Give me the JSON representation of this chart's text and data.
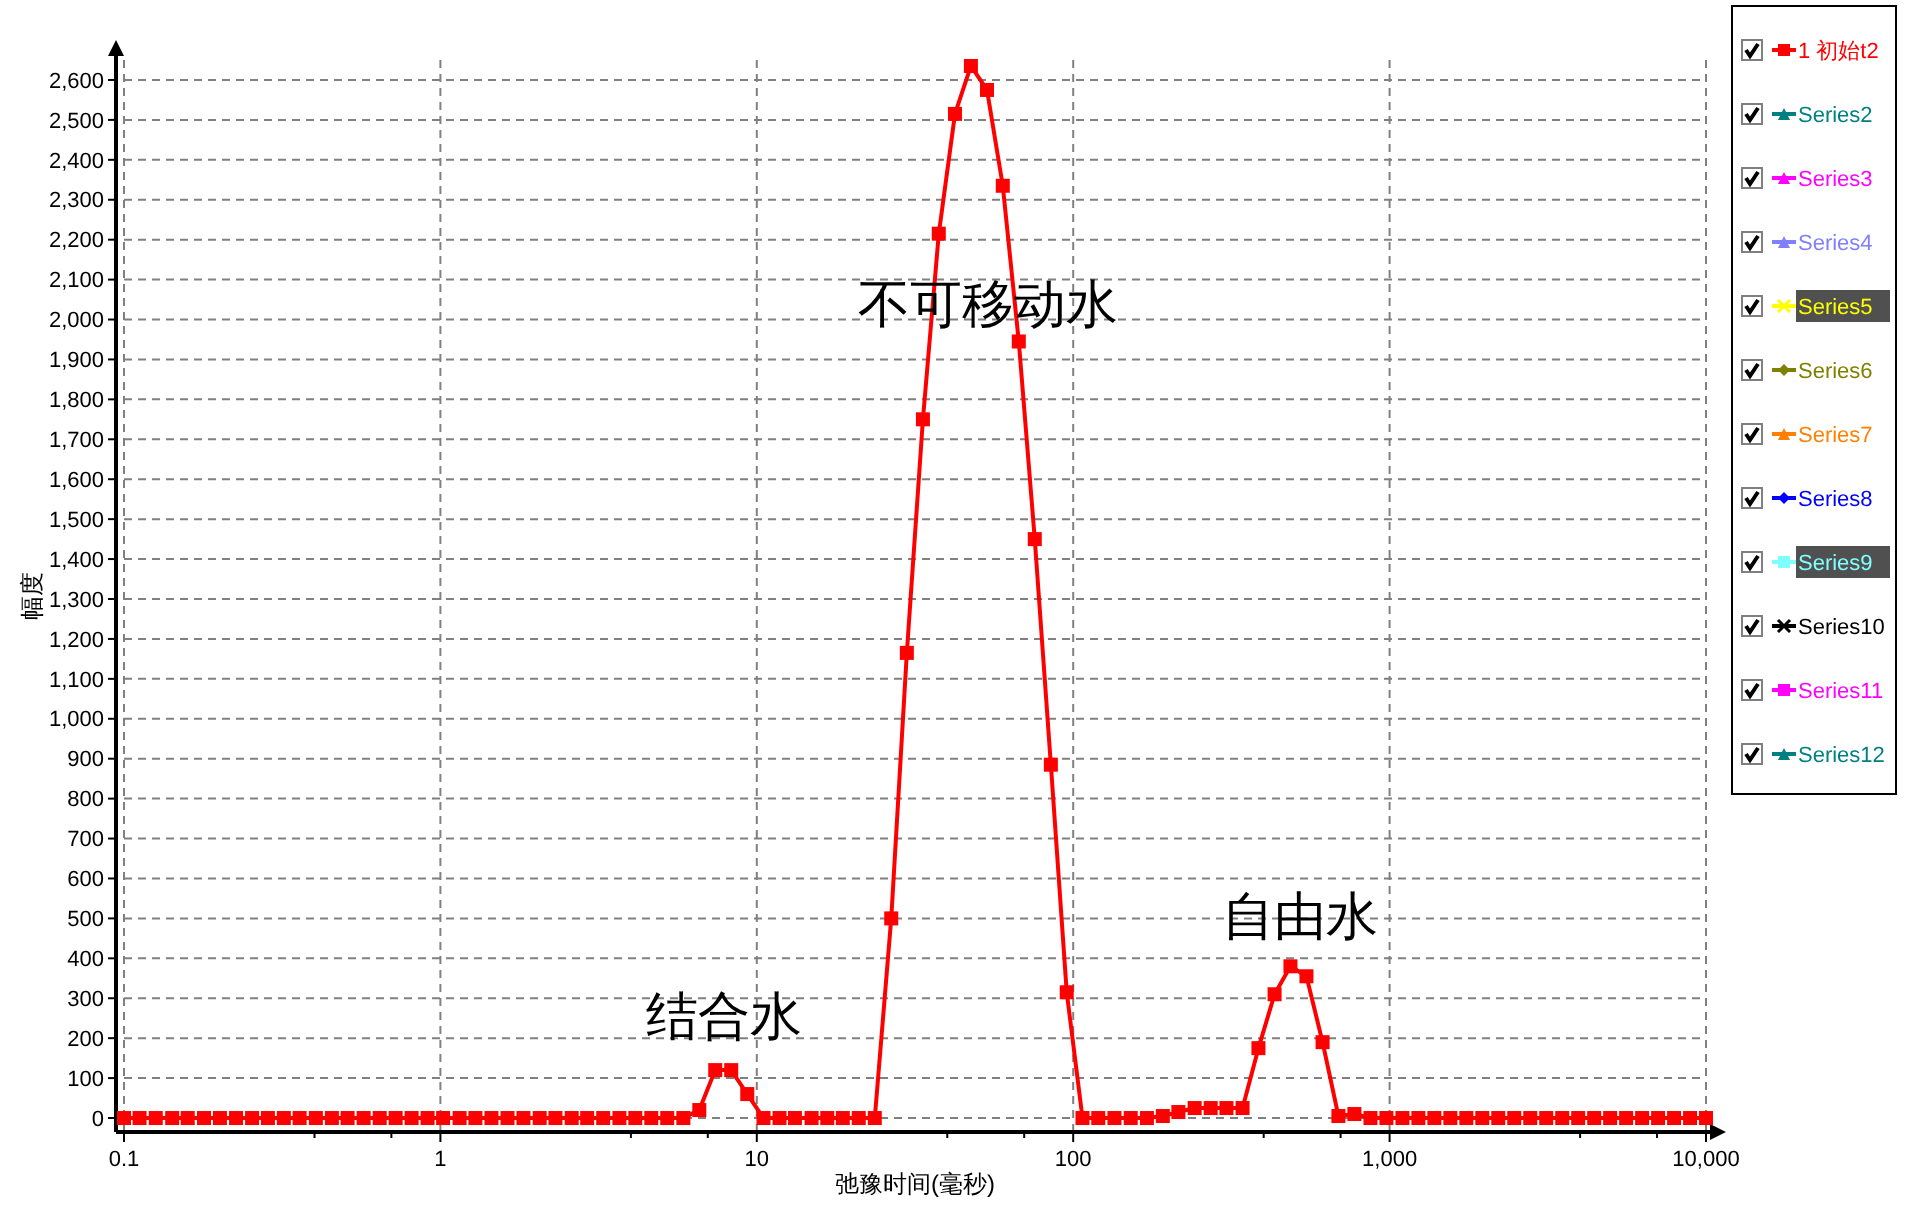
{
  "chart_data": {
    "type": "line",
    "xlabel": "弛豫时间(毫秒)",
    "ylabel": "幅度",
    "log": "x",
    "x": [
      0.1,
      0.112,
      0.126,
      0.142,
      0.159,
      0.179,
      0.201,
      0.226,
      0.254,
      0.285,
      0.32,
      0.359,
      0.404,
      0.454,
      0.509,
      0.572,
      0.643,
      0.722,
      0.811,
      0.911,
      1.02,
      1.15,
      1.29,
      1.45,
      1.63,
      1.83,
      2.06,
      2.31,
      2.6,
      2.91,
      3.27,
      3.68,
      4.13,
      4.64,
      5.21,
      5.86,
      6.58,
      7.39,
      8.3,
      9.33,
      10.5,
      11.8,
      13.2,
      14.9,
      16.7,
      18.7,
      21,
      23.6,
      26.6,
      29.8,
      33.5,
      37.6,
      42.3,
      47.5,
      53.4,
      59.9,
      67.3,
      75.6,
      85,
      95.4,
      107,
      120,
      135,
      152,
      171,
      192,
      215,
      242,
      272,
      305,
      343,
      385,
      433,
      486,
      546,
      614,
      689,
      774,
      870,
      977,
      1098,
      1233,
      1385,
      1556,
      1748,
      1963,
      2205,
      2477,
      2783,
      3126,
      3512,
      3945,
      4432,
      4978,
      5592,
      6282,
      7057,
      7927,
      8905,
      10000
    ],
    "series": [
      {
        "name": "1 初始t2",
        "color": "#ff0000",
        "marker": "square",
        "values": [
          0,
          0,
          0,
          0,
          0,
          0,
          0,
          0,
          0,
          0,
          0,
          0,
          0,
          0,
          0,
          0,
          0,
          0,
          0,
          0,
          0,
          0,
          0,
          0,
          0,
          0,
          0,
          0,
          0,
          0,
          0,
          0,
          0,
          0,
          0,
          0,
          20,
          120,
          120,
          60,
          0,
          0,
          0,
          0,
          0,
          0,
          0,
          0,
          500,
          1165,
          1750,
          2215,
          2515,
          2635,
          2575,
          2335,
          1945,
          1450,
          885,
          315,
          0,
          0,
          0,
          0,
          0,
          5,
          15,
          25,
          25,
          25,
          25,
          175,
          310,
          380,
          355,
          190,
          5,
          10,
          0,
          0,
          0,
          0,
          0,
          0,
          0,
          0,
          0,
          0,
          0,
          0,
          0,
          0,
          0,
          0,
          0,
          0,
          0,
          0,
          0,
          0
        ]
      },
      {
        "name": "Series2",
        "color": "#008080",
        "marker": "triangle",
        "values": [
          null,
          null,
          null,
          null,
          null,
          null,
          null,
          null,
          null,
          null,
          null,
          null,
          null,
          null,
          null,
          null,
          null,
          null,
          null,
          null,
          null,
          null,
          null,
          null,
          null,
          null,
          null,
          null,
          null,
          null,
          null,
          null,
          null,
          null,
          null,
          null,
          null,
          null,
          null,
          null,
          null,
          null,
          null,
          null,
          null,
          null,
          null,
          null,
          null,
          null,
          null,
          null,
          null,
          null,
          null,
          null,
          null,
          null,
          null,
          null,
          null,
          null,
          null,
          null,
          null,
          null,
          null,
          null,
          null,
          null,
          null,
          null,
          null,
          null,
          null,
          null,
          null,
          null,
          null,
          null,
          null,
          null,
          null,
          null,
          null,
          null,
          null,
          null,
          null,
          null,
          null,
          null,
          null,
          null,
          null,
          null,
          null,
          null,
          null,
          null
        ]
      },
      {
        "name": "Series3",
        "color": "#ff00ff",
        "marker": "triangle",
        "values": [
          null,
          null,
          null,
          null,
          null,
          null,
          null,
          null,
          null,
          null,
          null,
          null,
          null,
          null,
          null,
          null,
          null,
          null,
          null,
          null,
          null,
          null,
          null,
          null,
          null,
          null,
          null,
          null,
          null,
          null,
          null,
          null,
          null,
          null,
          null,
          null,
          null,
          null,
          null,
          null,
          null,
          null,
          null,
          null,
          null,
          null,
          null,
          null,
          null,
          null,
          null,
          null,
          null,
          null,
          null,
          null,
          null,
          null,
          null,
          null,
          null,
          null,
          null,
          null,
          null,
          null,
          null,
          null,
          null,
          null,
          null,
          null,
          null,
          null,
          null,
          null,
          null,
          null,
          null,
          null,
          null,
          null,
          null,
          null,
          null,
          null,
          null,
          null,
          null,
          null,
          null,
          null,
          null,
          null,
          null,
          null,
          null,
          null,
          null,
          null
        ]
      },
      {
        "name": "Series4",
        "color": "#8080ff",
        "marker": "triangle",
        "values": [
          null,
          null,
          null,
          null,
          null,
          null,
          null,
          null,
          null,
          null,
          null,
          null,
          null,
          null,
          null,
          null,
          null,
          null,
          null,
          null,
          null,
          null,
          null,
          null,
          null,
          null,
          null,
          null,
          null,
          null,
          null,
          null,
          null,
          null,
          null,
          null,
          null,
          null,
          null,
          null,
          null,
          null,
          null,
          null,
          null,
          null,
          null,
          null,
          null,
          null,
          null,
          null,
          null,
          null,
          null,
          null,
          null,
          null,
          null,
          null,
          null,
          null,
          null,
          null,
          null,
          null,
          null,
          null,
          null,
          null,
          null,
          null,
          null,
          null,
          null,
          null,
          null,
          null,
          null,
          null,
          null,
          null,
          null,
          null,
          null,
          null,
          null,
          null,
          null,
          null,
          null,
          null,
          null,
          null,
          null,
          null,
          null,
          null,
          null,
          null
        ]
      },
      {
        "name": "Series5",
        "color": "#ffff00",
        "marker": "cross",
        "values": [
          null,
          null,
          null,
          null,
          null,
          null,
          null,
          null,
          null,
          null,
          null,
          null,
          null,
          null,
          null,
          null,
          null,
          null,
          null,
          null,
          null,
          null,
          null,
          null,
          null,
          null,
          null,
          null,
          null,
          null,
          null,
          null,
          null,
          null,
          null,
          null,
          null,
          null,
          null,
          null,
          null,
          null,
          null,
          null,
          null,
          null,
          null,
          null,
          null,
          null,
          null,
          null,
          null,
          null,
          null,
          null,
          null,
          null,
          null,
          null,
          null,
          null,
          null,
          null,
          null,
          null,
          null,
          null,
          null,
          null,
          null,
          null,
          null,
          null,
          null,
          null,
          null,
          null,
          null,
          null,
          null,
          null,
          null,
          null,
          null,
          null,
          null,
          null,
          null,
          null,
          null,
          null,
          null,
          null,
          null,
          null,
          null,
          null,
          null,
          null
        ]
      },
      {
        "name": "Series6",
        "color": "#808000",
        "marker": "diamond",
        "values": [
          null,
          null,
          null,
          null,
          null,
          null,
          null,
          null,
          null,
          null,
          null,
          null,
          null,
          null,
          null,
          null,
          null,
          null,
          null,
          null,
          null,
          null,
          null,
          null,
          null,
          null,
          null,
          null,
          null,
          null,
          null,
          null,
          null,
          null,
          null,
          null,
          null,
          null,
          null,
          null,
          null,
          null,
          null,
          null,
          null,
          null,
          null,
          null,
          null,
          null,
          null,
          null,
          null,
          null,
          null,
          null,
          null,
          null,
          null,
          null,
          null,
          null,
          null,
          null,
          null,
          null,
          null,
          null,
          null,
          null,
          null,
          null,
          null,
          null,
          null,
          null,
          null,
          null,
          null,
          null,
          null,
          null,
          null,
          null,
          null,
          null,
          null,
          null,
          null,
          null,
          null,
          null,
          null,
          null,
          null,
          null,
          null,
          null,
          null,
          null
        ]
      },
      {
        "name": "Series7",
        "color": "#ff8000",
        "marker": "triangle",
        "values": [
          null,
          null,
          null,
          null,
          null,
          null,
          null,
          null,
          null,
          null,
          null,
          null,
          null,
          null,
          null,
          null,
          null,
          null,
          null,
          null,
          null,
          null,
          null,
          null,
          null,
          null,
          null,
          null,
          null,
          null,
          null,
          null,
          null,
          null,
          null,
          null,
          null,
          null,
          null,
          null,
          null,
          null,
          null,
          null,
          null,
          null,
          null,
          null,
          null,
          null,
          null,
          null,
          null,
          null,
          null,
          null,
          null,
          null,
          null,
          null,
          null,
          null,
          null,
          null,
          null,
          null,
          null,
          null,
          null,
          null,
          null,
          null,
          null,
          null,
          null,
          null,
          null,
          null,
          null,
          null,
          null,
          null,
          null,
          null,
          null,
          null,
          null,
          null,
          null,
          null,
          null,
          null,
          null,
          null,
          null,
          null,
          null,
          null,
          null,
          null
        ]
      },
      {
        "name": "Series8",
        "color": "#0000ff",
        "marker": "diamond",
        "values": [
          null,
          null,
          null,
          null,
          null,
          null,
          null,
          null,
          null,
          null,
          null,
          null,
          null,
          null,
          null,
          null,
          null,
          null,
          null,
          null,
          null,
          null,
          null,
          null,
          null,
          null,
          null,
          null,
          null,
          null,
          null,
          null,
          null,
          null,
          null,
          null,
          null,
          null,
          null,
          null,
          null,
          null,
          null,
          null,
          null,
          null,
          null,
          null,
          null,
          null,
          null,
          null,
          null,
          null,
          null,
          null,
          null,
          null,
          null,
          null,
          null,
          null,
          null,
          null,
          null,
          null,
          null,
          null,
          null,
          null,
          null,
          null,
          null,
          null,
          null,
          null,
          null,
          null,
          null,
          null,
          null,
          null,
          null,
          null,
          null,
          null,
          null,
          null,
          null,
          null,
          null,
          null,
          null,
          null,
          null,
          null,
          null,
          null,
          null,
          null
        ]
      },
      {
        "name": "Series9",
        "color": "#80ffff",
        "marker": "square",
        "values": [
          null,
          null,
          null,
          null,
          null,
          null,
          null,
          null,
          null,
          null,
          null,
          null,
          null,
          null,
          null,
          null,
          null,
          null,
          null,
          null,
          null,
          null,
          null,
          null,
          null,
          null,
          null,
          null,
          null,
          null,
          null,
          null,
          null,
          null,
          null,
          null,
          null,
          null,
          null,
          null,
          null,
          null,
          null,
          null,
          null,
          null,
          null,
          null,
          null,
          null,
          null,
          null,
          null,
          null,
          null,
          null,
          null,
          null,
          null,
          null,
          null,
          null,
          null,
          null,
          null,
          null,
          null,
          null,
          null,
          null,
          null,
          null,
          null,
          null,
          null,
          null,
          null,
          null,
          null,
          null,
          null,
          null,
          null,
          null,
          null,
          null,
          null,
          null,
          null,
          null,
          null,
          null,
          null,
          null,
          null,
          null,
          null,
          null,
          null,
          null
        ]
      },
      {
        "name": "Series10",
        "color": "#000000",
        "marker": "cross",
        "values": [
          null,
          null,
          null,
          null,
          null,
          null,
          null,
          null,
          null,
          null,
          null,
          null,
          null,
          null,
          null,
          null,
          null,
          null,
          null,
          null,
          null,
          null,
          null,
          null,
          null,
          null,
          null,
          null,
          null,
          null,
          null,
          null,
          null,
          null,
          null,
          null,
          null,
          null,
          null,
          null,
          null,
          null,
          null,
          null,
          null,
          null,
          null,
          null,
          null,
          null,
          null,
          null,
          null,
          null,
          null,
          null,
          null,
          null,
          null,
          null,
          null,
          null,
          null,
          null,
          null,
          null,
          null,
          null,
          null,
          null,
          null,
          null,
          null,
          null,
          null,
          null,
          null,
          null,
          null,
          null,
          null,
          null,
          null,
          null,
          null,
          null,
          null,
          null,
          null,
          null,
          null,
          null,
          null,
          null,
          null,
          null,
          null,
          null,
          null,
          null
        ]
      },
      {
        "name": "Series11",
        "color": "#ff00ff",
        "marker": "square",
        "values": [
          null,
          null,
          null,
          null,
          null,
          null,
          null,
          null,
          null,
          null,
          null,
          null,
          null,
          null,
          null,
          null,
          null,
          null,
          null,
          null,
          null,
          null,
          null,
          null,
          null,
          null,
          null,
          null,
          null,
          null,
          null,
          null,
          null,
          null,
          null,
          null,
          null,
          null,
          null,
          null,
          null,
          null,
          null,
          null,
          null,
          null,
          null,
          null,
          null,
          null,
          null,
          null,
          null,
          null,
          null,
          null,
          null,
          null,
          null,
          null,
          null,
          null,
          null,
          null,
          null,
          null,
          null,
          null,
          null,
          null,
          null,
          null,
          null,
          null,
          null,
          null,
          null,
          null,
          null,
          null,
          null,
          null,
          null,
          null,
          null,
          null,
          null,
          null,
          null,
          null,
          null,
          null,
          null,
          null,
          null,
          null,
          null,
          null,
          null,
          null
        ]
      },
      {
        "name": "Series12",
        "color": "#008080",
        "marker": "triangle",
        "values": [
          null,
          null,
          null,
          null,
          null,
          null,
          null,
          null,
          null,
          null,
          null,
          null,
          null,
          null,
          null,
          null,
          null,
          null,
          null,
          null,
          null,
          null,
          null,
          null,
          null,
          null,
          null,
          null,
          null,
          null,
          null,
          null,
          null,
          null,
          null,
          null,
          null,
          null,
          null,
          null,
          null,
          null,
          null,
          null,
          null,
          null,
          null,
          null,
          null,
          null,
          null,
          null,
          null,
          null,
          null,
          null,
          null,
          null,
          null,
          null,
          null,
          null,
          null,
          null,
          null,
          null,
          null,
          null,
          null,
          null,
          null,
          null,
          null,
          null,
          null,
          null,
          null,
          null,
          null,
          null,
          null,
          null,
          null,
          null,
          null,
          null,
          null,
          null,
          null,
          null,
          null,
          null,
          null,
          null,
          null,
          null,
          null,
          null,
          null,
          null
        ]
      }
    ],
    "xlim": [
      0.1,
      10000
    ],
    "xticks": [
      0.1,
      {
        "value": 0.4,
        "label": null
      },
      {
        "value": 0.7,
        "label": null
      },
      1,
      {
        "value": 4,
        "label": null
      },
      {
        "value": 7,
        "label": null
      },
      10,
      {
        "value": 40,
        "label": null
      },
      {
        "value": 70,
        "label": null
      },
      100,
      {
        "value": 400,
        "label": null
      },
      {
        "value": 700,
        "label": null
      },
      {
        "value": 1000,
        "label": "1,000"
      },
      {
        "value": 4000,
        "label": null
      },
      {
        "value": 7000,
        "label": null
      },
      {
        "value": 10000,
        "label": "10,000"
      }
    ],
    "ylim": [
      -35,
      2650
    ],
    "yticks": [
      0,
      100,
      200,
      300,
      400,
      500,
      600,
      700,
      800,
      900,
      {
        "value": 1000,
        "label": "1,000"
      },
      {
        "value": 1100,
        "label": "1,100"
      },
      {
        "value": 1200,
        "label": "1,200"
      },
      {
        "value": 1300,
        "label": "1,300"
      },
      {
        "value": 1400,
        "label": "1,400"
      },
      {
        "value": 1500,
        "label": "1,500"
      },
      {
        "value": 1600,
        "label": "1,600"
      },
      {
        "value": 1700,
        "label": "1,700"
      },
      {
        "value": 1800,
        "label": "1,800"
      },
      {
        "value": 1900,
        "label": "1,900"
      },
      {
        "value": 2000,
        "label": "2,000"
      },
      {
        "value": 2100,
        "label": "2,100"
      },
      {
        "value": 2200,
        "label": "2,200"
      },
      {
        "value": 2300,
        "label": "2,300"
      },
      {
        "value": 2400,
        "label": "2,400"
      },
      {
        "value": 2500,
        "label": "2,500"
      },
      {
        "value": 2600,
        "label": "2,600"
      }
    ],
    "grid": true,
    "legend": "right",
    "line_style": "solid",
    "annotations": [
      "结合水",
      "不可移动水",
      "自由水"
    ]
  }
}
